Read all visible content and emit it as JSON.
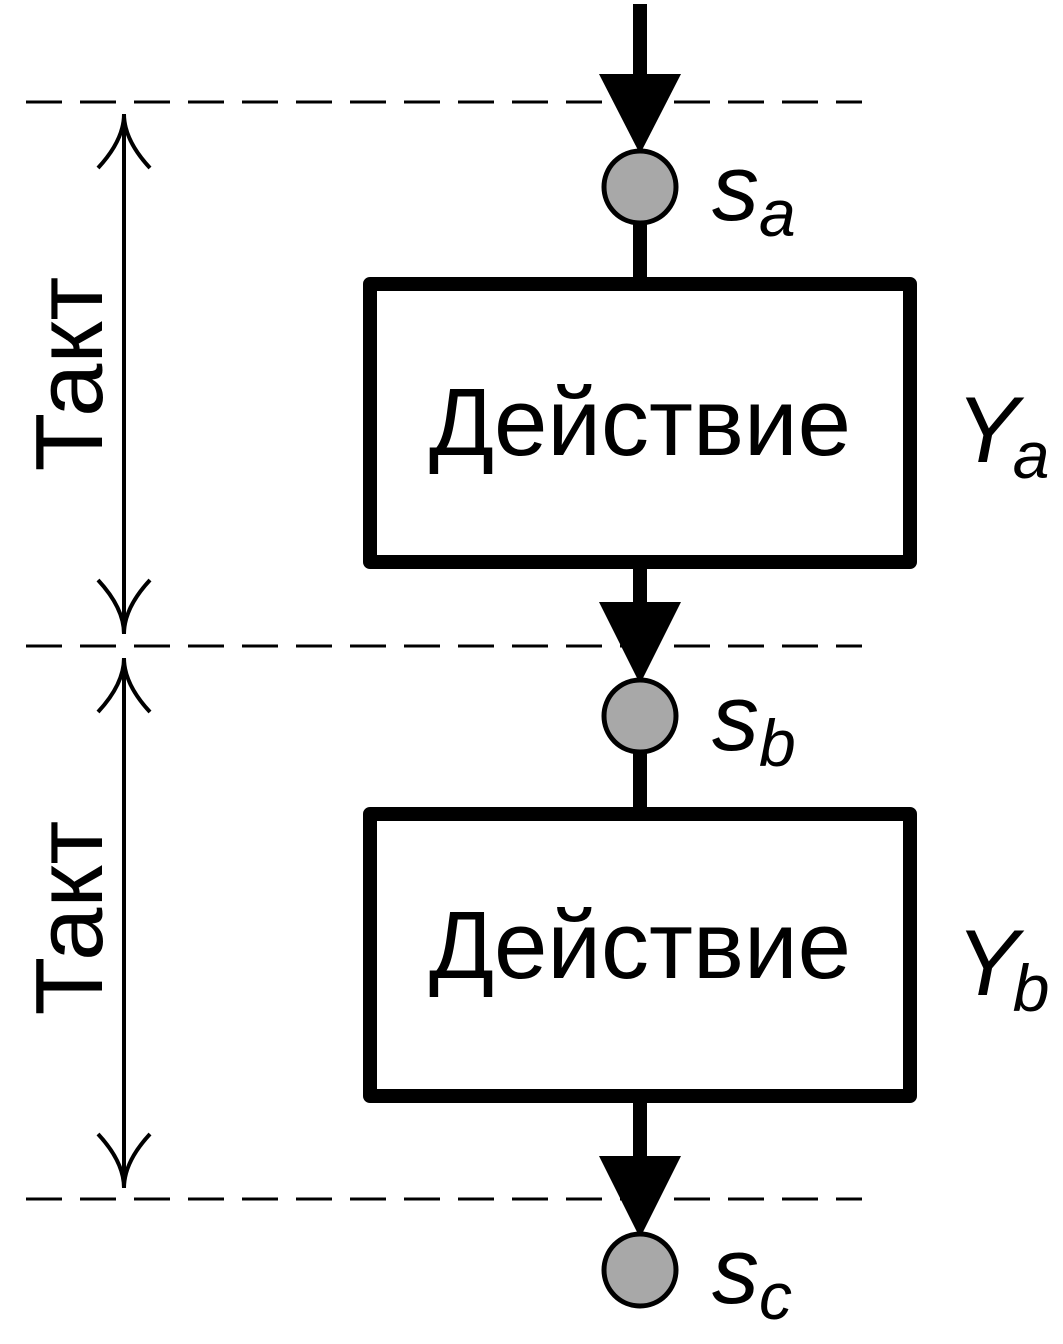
{
  "takt_label": "Такт",
  "states": [
    {
      "symbol": "s",
      "subscript": "a"
    },
    {
      "symbol": "s",
      "subscript": "b"
    },
    {
      "symbol": "s",
      "subscript": "c"
    }
  ],
  "actions": [
    {
      "label": "Действие",
      "output_symbol": "Y",
      "output_subscript": "a"
    },
    {
      "label": "Действие",
      "output_symbol": "Y",
      "output_subscript": "b"
    }
  ],
  "colors": {
    "line": "#000000",
    "state_fill": "#a8a8a8",
    "background": "#ffffff"
  }
}
